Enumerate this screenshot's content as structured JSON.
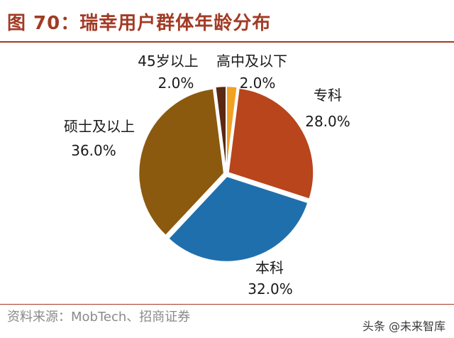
{
  "header": {
    "title": "图 70：瑞幸用户群体年龄分布"
  },
  "chart_data": {
    "type": "pie",
    "title": "图 70：瑞幸用户群体年龄分布",
    "slices": [
      {
        "label": "高中及以下",
        "value": 2.0,
        "value_label": "2.0%",
        "color": "#f2a123"
      },
      {
        "label": "专科",
        "value": 28.0,
        "value_label": "28.0%",
        "color": "#b8451b"
      },
      {
        "label": "本科",
        "value": 32.0,
        "value_label": "32.0%",
        "color": "#1f6fad"
      },
      {
        "label": "硕士及以上",
        "value": 36.0,
        "value_label": "36.0%",
        "color": "#8b5a0f"
      },
      {
        "label": "45岁以上",
        "value": 2.0,
        "value_label": "2.0%",
        "color": "#5c2812"
      }
    ]
  },
  "footer": {
    "source": "资料来源：MobTech、招商证券",
    "watermark": "头条 @未来智库"
  }
}
